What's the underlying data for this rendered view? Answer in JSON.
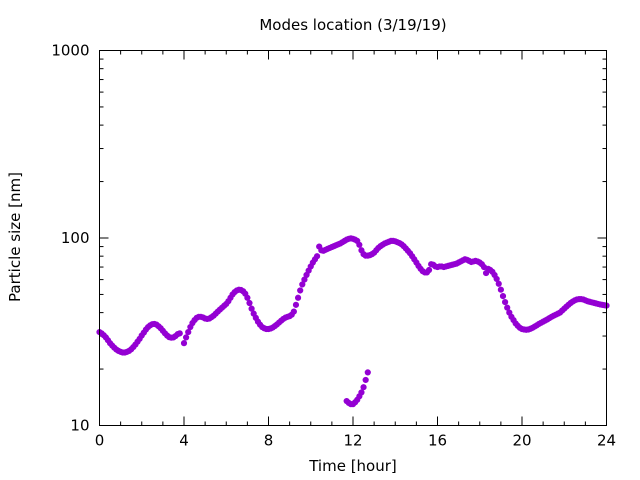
{
  "chart_data": {
    "type": "scatter",
    "title": "Modes location (3/19/19)",
    "xlabel": "Time [hour]",
    "ylabel": "Particle size [nm]",
    "xlim": [
      0,
      24
    ],
    "ylim": [
      10,
      1000
    ],
    "yscale": "log",
    "grid": false,
    "x_ticks": [
      "0",
      "4",
      "8",
      "12",
      "16",
      "20",
      "24"
    ],
    "y_ticks": [
      "10",
      "100",
      "1000"
    ],
    "marker_color": "#9400d3",
    "series": [
      {
        "points": [
          [
            0.0,
            31.5
          ],
          [
            0.1,
            31.0
          ],
          [
            0.2,
            30.3
          ],
          [
            0.3,
            29.5
          ],
          [
            0.4,
            28.5
          ],
          [
            0.5,
            27.5
          ],
          [
            0.6,
            26.7
          ],
          [
            0.7,
            26.0
          ],
          [
            0.8,
            25.4
          ],
          [
            0.9,
            25.0
          ],
          [
            1.0,
            24.7
          ],
          [
            1.1,
            24.5
          ],
          [
            1.2,
            24.5
          ],
          [
            1.3,
            24.7
          ],
          [
            1.4,
            25.0
          ],
          [
            1.5,
            25.5
          ],
          [
            1.6,
            26.2
          ],
          [
            1.7,
            27.0
          ],
          [
            1.8,
            28.0
          ],
          [
            1.9,
            29.0
          ],
          [
            2.0,
            30.2
          ],
          [
            2.1,
            31.3
          ],
          [
            2.2,
            32.5
          ],
          [
            2.3,
            33.5
          ],
          [
            2.4,
            34.2
          ],
          [
            2.5,
            34.7
          ],
          [
            2.6,
            34.8
          ],
          [
            2.7,
            34.5
          ],
          [
            2.8,
            33.8
          ],
          [
            2.9,
            33.0
          ],
          [
            3.0,
            32.0
          ],
          [
            3.1,
            31.0
          ],
          [
            3.2,
            30.2
          ],
          [
            3.3,
            29.6
          ],
          [
            3.4,
            29.4
          ],
          [
            3.5,
            29.5
          ],
          [
            3.6,
            30.0
          ],
          [
            3.7,
            30.7
          ],
          [
            3.8,
            31.0
          ],
          [
            4.0,
            27.5
          ],
          [
            4.1,
            29.5
          ],
          [
            4.2,
            31.5
          ],
          [
            4.3,
            33.5
          ],
          [
            4.4,
            35.2
          ],
          [
            4.5,
            36.5
          ],
          [
            4.6,
            37.5
          ],
          [
            4.7,
            38.0
          ],
          [
            4.8,
            38.0
          ],
          [
            4.9,
            37.7
          ],
          [
            5.0,
            37.2
          ],
          [
            5.1,
            37.0
          ],
          [
            5.2,
            37.2
          ],
          [
            5.3,
            37.8
          ],
          [
            5.4,
            38.5
          ],
          [
            5.5,
            39.5
          ],
          [
            5.6,
            40.5
          ],
          [
            5.7,
            41.5
          ],
          [
            5.8,
            42.5
          ],
          [
            5.9,
            43.5
          ],
          [
            6.0,
            44.5
          ],
          [
            6.1,
            46.0
          ],
          [
            6.2,
            48.0
          ],
          [
            6.3,
            50.0
          ],
          [
            6.4,
            51.5
          ],
          [
            6.5,
            52.5
          ],
          [
            6.6,
            53.0
          ],
          [
            6.7,
            52.8
          ],
          [
            6.8,
            52.0
          ],
          [
            6.9,
            50.5
          ],
          [
            7.0,
            48.0
          ],
          [
            7.1,
            45.0
          ],
          [
            7.2,
            42.0
          ],
          [
            7.3,
            39.5
          ],
          [
            7.4,
            37.5
          ],
          [
            7.5,
            35.8
          ],
          [
            7.6,
            34.5
          ],
          [
            7.7,
            33.5
          ],
          [
            7.8,
            33.0
          ],
          [
            7.9,
            32.7
          ],
          [
            8.0,
            32.7
          ],
          [
            8.1,
            32.9
          ],
          [
            8.2,
            33.3
          ],
          [
            8.3,
            33.9
          ],
          [
            8.4,
            34.6
          ],
          [
            8.5,
            35.4
          ],
          [
            8.6,
            36.2
          ],
          [
            8.7,
            37.0
          ],
          [
            8.8,
            37.6
          ],
          [
            8.9,
            38.0
          ],
          [
            9.0,
            38.3
          ],
          [
            9.1,
            39.0
          ],
          [
            9.2,
            40.5
          ],
          [
            9.3,
            44.0
          ],
          [
            9.4,
            48.0
          ],
          [
            9.5,
            52.5
          ],
          [
            9.6,
            56.5
          ],
          [
            9.7,
            60.0
          ],
          [
            9.8,
            63.5
          ],
          [
            9.9,
            67.0
          ],
          [
            10.0,
            70.5
          ],
          [
            10.1,
            74.0
          ],
          [
            10.2,
            77.0
          ],
          [
            10.3,
            80.0
          ],
          [
            10.4,
            90.0
          ],
          [
            10.5,
            86.0
          ],
          [
            10.6,
            85.5
          ],
          [
            10.7,
            86.5
          ],
          [
            10.8,
            87.5
          ],
          [
            10.9,
            88.5
          ],
          [
            11.0,
            89.5
          ],
          [
            11.1,
            90.5
          ],
          [
            11.2,
            91.5
          ],
          [
            11.3,
            92.5
          ],
          [
            11.4,
            93.5
          ],
          [
            11.5,
            95.0
          ],
          [
            11.6,
            96.5
          ],
          [
            11.7,
            98.0
          ],
          [
            11.8,
            99.0
          ],
          [
            11.9,
            99.5
          ],
          [
            12.0,
            99.0
          ],
          [
            12.1,
            98.0
          ],
          [
            12.2,
            96.5
          ],
          [
            12.3,
            92.0
          ],
          [
            12.4,
            86.0
          ],
          [
            12.5,
            82.0
          ],
          [
            12.6,
            80.5
          ],
          [
            12.7,
            80.5
          ],
          [
            12.8,
            81.0
          ],
          [
            12.9,
            82.0
          ],
          [
            13.0,
            83.5
          ],
          [
            13.1,
            86.0
          ],
          [
            13.2,
            88.5
          ],
          [
            13.3,
            90.5
          ],
          [
            13.4,
            92.0
          ],
          [
            13.5,
            93.5
          ],
          [
            13.6,
            94.5
          ],
          [
            13.7,
            95.5
          ],
          [
            13.8,
            96.5
          ],
          [
            13.9,
            96.5
          ],
          [
            14.0,
            96.0
          ],
          [
            14.1,
            95.0
          ],
          [
            14.2,
            94.0
          ],
          [
            14.3,
            92.5
          ],
          [
            14.4,
            90.5
          ],
          [
            14.5,
            88.0
          ],
          [
            14.6,
            85.5
          ],
          [
            14.7,
            83.0
          ],
          [
            14.8,
            80.0
          ],
          [
            14.9,
            77.0
          ],
          [
            15.0,
            74.0
          ],
          [
            15.1,
            71.0
          ],
          [
            15.2,
            68.5
          ],
          [
            15.3,
            66.5
          ],
          [
            15.4,
            65.5
          ],
          [
            15.5,
            65.5
          ],
          [
            15.6,
            67.5
          ],
          [
            15.7,
            72.5
          ],
          [
            15.8,
            72.0
          ],
          [
            15.9,
            70.5
          ],
          [
            16.0,
            70.0
          ],
          [
            16.1,
            70.5
          ],
          [
            16.2,
            70.5
          ],
          [
            16.3,
            70.0
          ],
          [
            16.4,
            70.5
          ],
          [
            16.5,
            71.0
          ],
          [
            16.6,
            71.5
          ],
          [
            16.7,
            72.0
          ],
          [
            16.8,
            72.5
          ],
          [
            16.9,
            73.0
          ],
          [
            17.0,
            74.0
          ],
          [
            17.1,
            75.0
          ],
          [
            17.2,
            76.0
          ],
          [
            17.3,
            77.0
          ],
          [
            17.4,
            76.5
          ],
          [
            17.5,
            75.5
          ],
          [
            17.6,
            74.5
          ],
          [
            17.7,
            75.0
          ],
          [
            17.8,
            75.5
          ],
          [
            17.9,
            75.0
          ],
          [
            18.0,
            74.0
          ],
          [
            18.1,
            72.5
          ],
          [
            18.2,
            70.0
          ],
          [
            18.3,
            65.0
          ],
          [
            18.4,
            68.5
          ],
          [
            18.5,
            67.5
          ],
          [
            18.6,
            66.0
          ],
          [
            18.7,
            63.5
          ],
          [
            18.8,
            60.5
          ],
          [
            18.9,
            57.0
          ],
          [
            19.0,
            53.0
          ],
          [
            19.1,
            49.0
          ],
          [
            19.2,
            45.5
          ],
          [
            19.3,
            42.5
          ],
          [
            19.4,
            40.0
          ],
          [
            19.5,
            38.0
          ],
          [
            19.6,
            36.5
          ],
          [
            19.7,
            35.0
          ],
          [
            19.8,
            34.0
          ],
          [
            19.9,
            33.2
          ],
          [
            20.0,
            32.7
          ],
          [
            20.1,
            32.5
          ],
          [
            20.2,
            32.4
          ],
          [
            20.3,
            32.5
          ],
          [
            20.4,
            32.8
          ],
          [
            20.5,
            33.2
          ],
          [
            20.6,
            33.7
          ],
          [
            20.7,
            34.2
          ],
          [
            20.8,
            34.8
          ],
          [
            20.9,
            35.3
          ],
          [
            21.0,
            35.8
          ],
          [
            21.1,
            36.3
          ],
          [
            21.2,
            36.8
          ],
          [
            21.3,
            37.4
          ],
          [
            21.4,
            38.0
          ],
          [
            21.5,
            38.5
          ],
          [
            21.6,
            39.0
          ],
          [
            21.7,
            39.5
          ],
          [
            21.8,
            40.0
          ],
          [
            21.9,
            41.0
          ],
          [
            22.0,
            42.0
          ],
          [
            22.1,
            43.0
          ],
          [
            22.2,
            44.0
          ],
          [
            22.3,
            45.0
          ],
          [
            22.4,
            45.8
          ],
          [
            22.5,
            46.5
          ],
          [
            22.6,
            47.0
          ],
          [
            22.7,
            47.2
          ],
          [
            22.8,
            47.2
          ],
          [
            22.9,
            47.0
          ],
          [
            23.0,
            46.5
          ],
          [
            23.1,
            46.0
          ],
          [
            23.2,
            45.7
          ],
          [
            23.3,
            45.4
          ],
          [
            23.4,
            45.1
          ],
          [
            23.5,
            44.8
          ],
          [
            23.6,
            44.5
          ],
          [
            23.7,
            44.2
          ],
          [
            23.8,
            44.0
          ],
          [
            23.9,
            43.8
          ],
          [
            24.0,
            43.6
          ]
        ]
      },
      {
        "points": [
          [
            11.7,
            13.5
          ],
          [
            11.8,
            13.2
          ],
          [
            11.9,
            13.0
          ],
          [
            12.0,
            13.0
          ],
          [
            12.1,
            13.3
          ],
          [
            12.2,
            13.7
          ],
          [
            12.3,
            14.3
          ],
          [
            12.4,
            15.0
          ],
          [
            12.5,
            16.0
          ],
          [
            12.6,
            17.5
          ],
          [
            12.7,
            19.2
          ]
        ]
      }
    ]
  }
}
